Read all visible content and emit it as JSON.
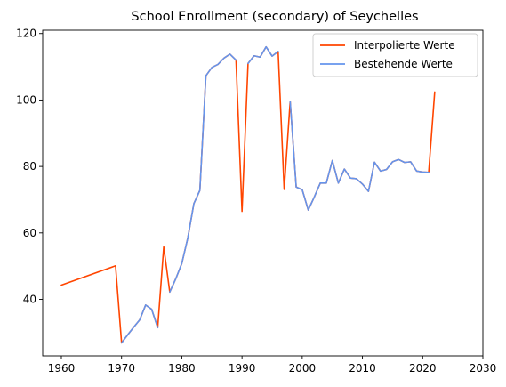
{
  "chart_data": {
    "type": "line",
    "title": "School Enrollment (secondary) of Seychelles",
    "xlabel": "",
    "ylabel": "",
    "xlim": [
      1956.9,
      2030
    ],
    "ylim": [
      23,
      121
    ],
    "xticks": [
      1960,
      1970,
      1980,
      1990,
      2000,
      2010,
      2020,
      2030
    ],
    "yticks": [
      40,
      60,
      80,
      100,
      120
    ],
    "grid": false,
    "legend_position": "upper-right",
    "series": [
      {
        "name": "Interpolierte Werte",
        "color": "#ff4500",
        "x": [
          1960,
          1969,
          1970,
          1971,
          1972,
          1973,
          1974,
          1975,
          1976,
          1977,
          1978,
          1979,
          1980,
          1981,
          1982,
          1983,
          1984,
          1985,
          1986,
          1987,
          1988,
          1989,
          1990,
          1991,
          1992,
          1993,
          1994,
          1995,
          1996,
          1997,
          1998,
          1999,
          2000,
          2001,
          2002,
          2003,
          2004,
          2005,
          2006,
          2007,
          2008,
          2009,
          2010,
          2011,
          2012,
          2013,
          2014,
          2015,
          2016,
          2017,
          2018,
          2019,
          2020,
          2021,
          2022
        ],
        "y": [
          44.3,
          50.1,
          26.9,
          29.3,
          31.6,
          33.8,
          38.3,
          37.0,
          31.5,
          55.8,
          42.2,
          46.2,
          50.8,
          58.5,
          68.8,
          72.8,
          107.3,
          109.8,
          110.7,
          112.6,
          113.8,
          112.0,
          66.5,
          111.0,
          113.3,
          112.9,
          116.0,
          113.2,
          114.6,
          73.1,
          99.6,
          73.8,
          73.0,
          66.9,
          70.8,
          75.0,
          75.0,
          81.8,
          75.0,
          79.2,
          76.5,
          76.3,
          74.7,
          72.5,
          81.3,
          78.6,
          79.1,
          81.4,
          82.1,
          81.2,
          81.4,
          78.6,
          78.3,
          78.2,
          102.4
        ]
      },
      {
        "name": "Bestehende Werte",
        "color": "#6495ed",
        "segments": [
          {
            "x": [
              1970,
              1971,
              1972,
              1973,
              1974,
              1975,
              1976
            ],
            "y": [
              26.9,
              29.3,
              31.6,
              33.8,
              38.3,
              37.0,
              31.5
            ]
          },
          {
            "x": [
              1978,
              1979,
              1980,
              1981,
              1982,
              1983,
              1984,
              1985,
              1986,
              1987,
              1988,
              1989
            ],
            "y": [
              42.2,
              46.2,
              50.8,
              58.5,
              68.8,
              72.8,
              107.3,
              109.8,
              110.7,
              112.6,
              113.8,
              112.0
            ]
          },
          {
            "x": [
              1991,
              1992,
              1993,
              1994,
              1995,
              1996
            ],
            "y": [
              111.0,
              113.3,
              112.9,
              116.0,
              113.2,
              114.6
            ]
          },
          {
            "x": [
              1998,
              1999,
              2000,
              2001,
              2002,
              2003,
              2004,
              2005,
              2006,
              2007,
              2008,
              2009,
              2010,
              2011,
              2012,
              2013,
              2014,
              2015,
              2016,
              2017,
              2018,
              2019,
              2020,
              2021
            ],
            "y": [
              99.6,
              73.8,
              73.0,
              66.9,
              70.8,
              75.0,
              75.0,
              81.8,
              75.0,
              79.2,
              76.5,
              76.3,
              74.7,
              72.5,
              81.3,
              78.6,
              79.1,
              81.4,
              82.1,
              81.2,
              81.4,
              78.6,
              78.3,
              78.2
            ]
          }
        ]
      }
    ]
  }
}
